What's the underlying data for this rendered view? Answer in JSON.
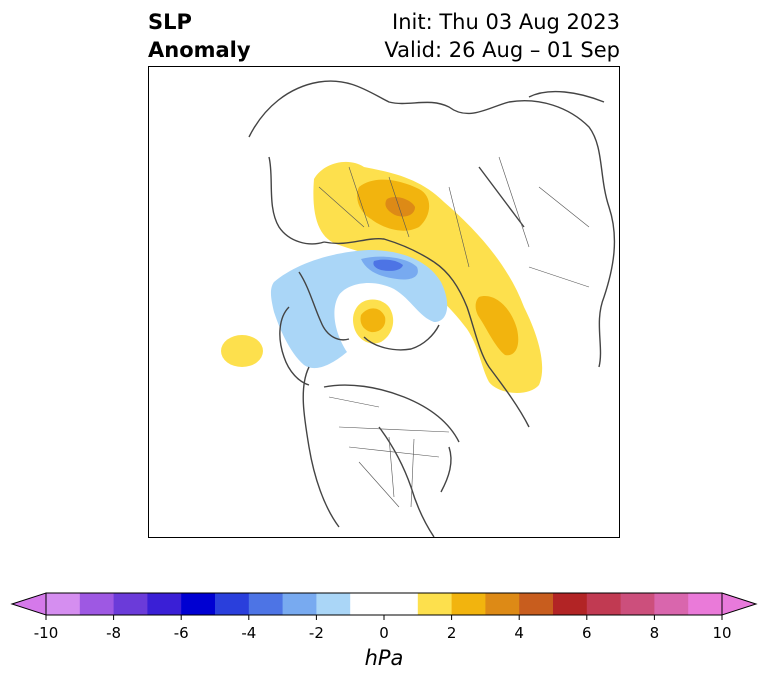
{
  "title": {
    "left_line1": "SLP",
    "left_line2": "Anomaly",
    "init": "Init: Thu 03 Aug 2023",
    "valid": "Valid: 26 Aug – 01 Sep"
  },
  "colorbar": {
    "unit": "hPa",
    "ticks": [
      "-10",
      "-8",
      "-6",
      "-4",
      "-2",
      "0",
      "2",
      "4",
      "6",
      "8",
      "10"
    ],
    "levels": [
      -10,
      -9,
      -8,
      -7,
      -6,
      -5,
      -4,
      -3,
      -2,
      -1,
      1,
      2,
      3,
      4,
      5,
      6,
      7,
      8,
      9,
      10
    ],
    "colors": [
      "#d58ef0",
      "#9e58e3",
      "#6b3bd9",
      "#3a1fd6",
      "#0000d2",
      "#2a3fdc",
      "#4d74e5",
      "#78aaf0",
      "#aad6f7",
      "#ffffff",
      "#fde04d",
      "#f2b40e",
      "#dd8a16",
      "#c85d1e",
      "#b22425",
      "#c13a52",
      "#cc4f7c",
      "#d966ad",
      "#ea7ad9"
    ],
    "extend_low_color": "#d579ea",
    "extend_high_color": "#e87adb"
  },
  "map": {
    "projection": "north-polar-stereographic",
    "anomaly_regions": [
      {
        "name": "scandinavia-russia-high",
        "sign": "positive",
        "peak_hpa": 4
      },
      {
        "name": "siberia-high",
        "sign": "positive",
        "peak_hpa": 3
      },
      {
        "name": "north-pole-high",
        "sign": "positive",
        "peak_hpa": 2
      },
      {
        "name": "north-pacific-high",
        "sign": "positive",
        "peak_hpa": 1
      },
      {
        "name": "greenland-arctic-low",
        "sign": "negative",
        "peak_hpa": -3
      }
    ]
  }
}
